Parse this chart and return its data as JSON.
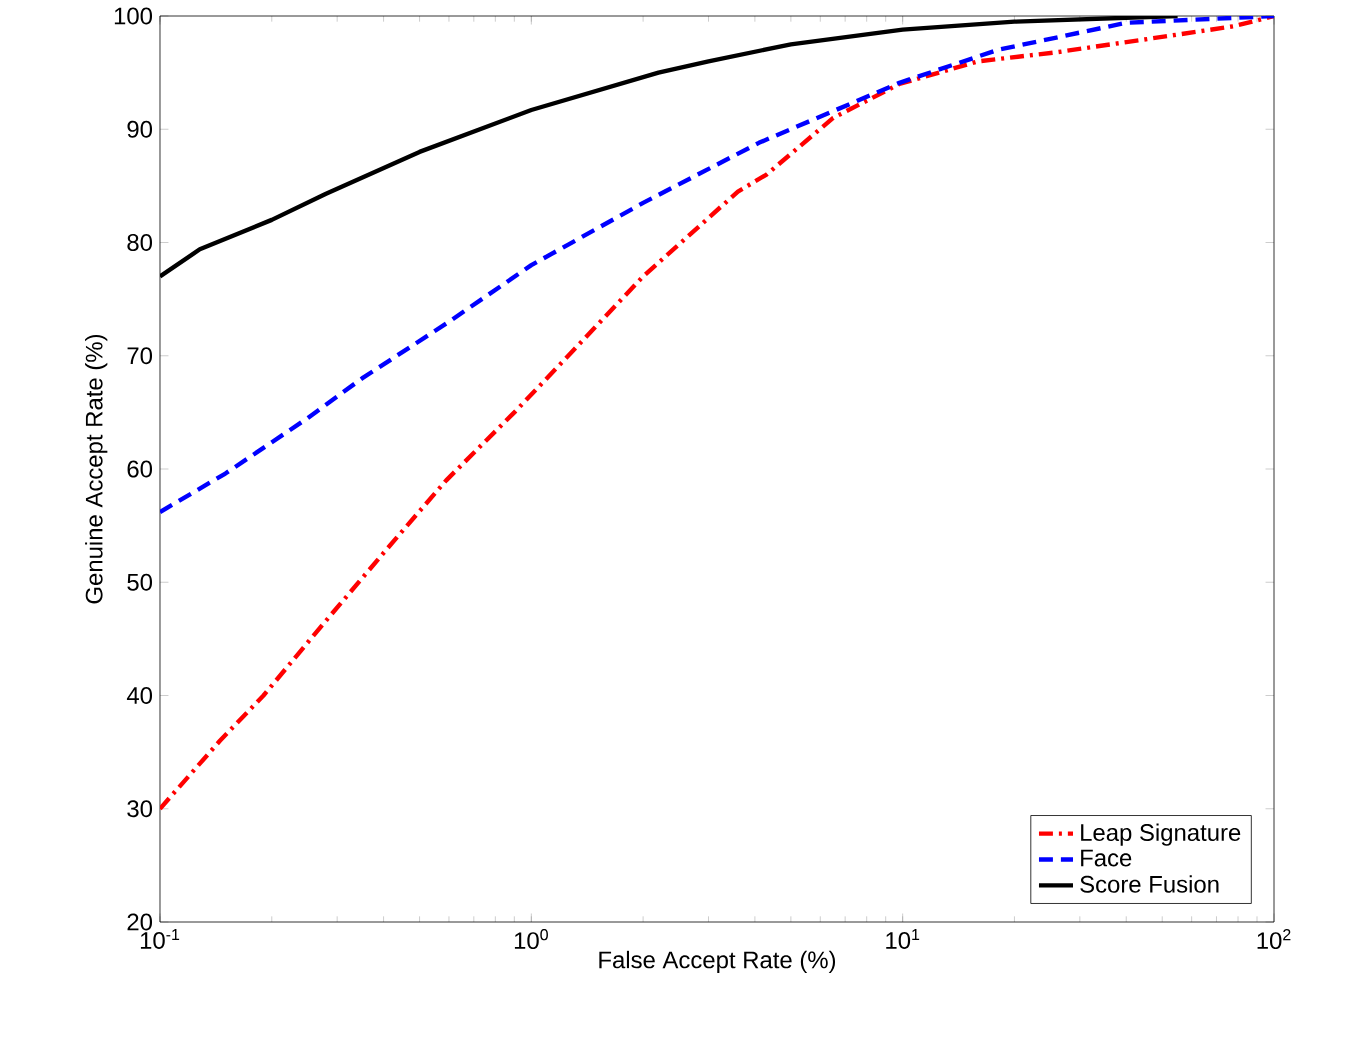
{
  "chart_data": {
    "type": "line",
    "xlabel": "False Accept Rate (%)",
    "ylabel": "Genuine Accept Rate (%)",
    "log": "x",
    "xlim": [
      0.1,
      100
    ],
    "ylim": [
      20,
      100
    ],
    "xticks": [
      {
        "value": 0.1,
        "label": "10$^{-1}$"
      },
      {
        "value": 1,
        "label": "10$^{0}$"
      },
      {
        "value": 10,
        "label": "10$^{1}$"
      },
      {
        "value": 100,
        "label": "10$^{2}$"
      }
    ],
    "yticks": [
      20,
      30,
      40,
      50,
      60,
      70,
      80,
      90,
      100
    ],
    "grid": false,
    "legend": "bottom right",
    "marker": "none",
    "series": [
      {
        "name": "Leap Signature",
        "color": "#ff0000",
        "line_style": "dashdot",
        "x": [
          0.1,
          0.145,
          0.19,
          0.27,
          0.41,
          0.59,
          0.9,
          1.3,
          2.0,
          3.6,
          4.3,
          6.5,
          9.8,
          16,
          26,
          51,
          78,
          100
        ],
        "values": [
          30,
          36,
          40,
          46,
          53,
          59,
          65,
          70.5,
          77,
          84.5,
          86,
          91,
          94,
          96,
          96.8,
          98.2,
          99.1,
          100
        ]
      },
      {
        "name": "Face",
        "color": "#0000ff",
        "line_style": "dashed",
        "x": [
          0.1,
          0.15,
          0.25,
          0.35,
          0.6,
          1,
          2,
          4.1,
          9.8,
          18,
          40,
          100
        ],
        "values": [
          56.2,
          59.6,
          64.5,
          68,
          73,
          78,
          83.5,
          88.8,
          94.1,
          97,
          99.4,
          100
        ]
      },
      {
        "name": "Score Fusion",
        "color": "#000000",
        "line_style": "solid",
        "x": [
          0.1,
          0.128,
          0.2,
          0.28,
          0.5,
          1,
          2.2,
          3,
          5,
          10,
          20,
          55
        ],
        "values": [
          77,
          79.4,
          82,
          84.3,
          88,
          91.7,
          95,
          96,
          97.5,
          98.8,
          99.5,
          100
        ]
      }
    ]
  }
}
